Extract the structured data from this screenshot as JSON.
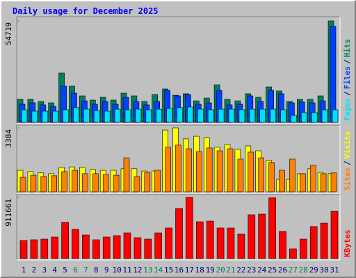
{
  "chart_data": {
    "type": "bar",
    "title": "Daily usage for December 2025",
    "categories": [
      "1",
      "2",
      "3",
      "4",
      "5",
      "6",
      "7",
      "8",
      "9",
      "10",
      "11",
      "12",
      "13",
      "14",
      "15",
      "16",
      "17",
      "18",
      "19",
      "20",
      "21",
      "22",
      "23",
      "24",
      "25",
      "26",
      "27",
      "28",
      "29",
      "30",
      "31"
    ],
    "label_colors": [
      "#000080",
      "#000080",
      "#000080",
      "#000080",
      "#000080",
      "#00805c",
      "#00805c",
      "#000080",
      "#000080",
      "#000080",
      "#000080",
      "#000080",
      "#00805c",
      "#00805c",
      "#000080",
      "#000080",
      "#000080",
      "#000080",
      "#000080",
      "#00805c",
      "#00805c",
      "#000080",
      "#000080",
      "#000080",
      "#000080",
      "#000080",
      "#00805c",
      "#00805c",
      "#000080",
      "#000080",
      "#000080"
    ],
    "legend_separator": "/",
    "panels": [
      {
        "ylim": [
          0,
          54719
        ],
        "yticks": [
          54719
        ],
        "series": [
          {
            "name": "Hits",
            "color": "#00805c",
            "values": [
              12400,
              12400,
              11250,
              10500,
              26600,
              19500,
              14250,
              12000,
              13500,
              12000,
              15750,
              14250,
              11250,
              15000,
              18000,
              14600,
              15400,
              11600,
              13100,
              20250,
              12400,
              11600,
              15400,
              13500,
              19100,
              16900,
              11250,
              12400,
              12400,
              14250,
              54719
            ]
          },
          {
            "name": "Files",
            "color": "#0040ff",
            "values": [
              9750,
              10500,
              9400,
              8600,
              19500,
              15750,
              11600,
              9750,
              11250,
              9750,
              13500,
              11250,
              9400,
              11250,
              17250,
              14250,
              15000,
              9750,
              10500,
              17250,
              9400,
              9750,
              14250,
              11250,
              17250,
              15400,
              10500,
              10900,
              10500,
              11600,
              51750
            ]
          },
          {
            "name": "Pages",
            "color": "#00e0ff",
            "values": [
              6750,
              6000,
              6000,
              6000,
              6750,
              7900,
              7100,
              6400,
              6000,
              7100,
              6750,
              7100,
              6750,
              7100,
              7500,
              7900,
              8250,
              7100,
              6750,
              7100,
              7100,
              6750,
              7100,
              7100,
              7100,
              6750,
              3750,
              5250,
              5250,
              6750,
              6750
            ]
          }
        ]
      },
      {
        "ylim": [
          0,
          3384
        ],
        "yticks": [
          3384
        ],
        "series": [
          {
            "name": "Visits",
            "color": "#ffff00",
            "values": [
              1140,
              1070,
              1000,
              960,
              1290,
              1320,
              1290,
              1180,
              1140,
              1140,
              1220,
              1220,
              1100,
              1100,
              3270,
              3384,
              2800,
              2940,
              2870,
              2360,
              2500,
              2250,
              2430,
              2170,
              1660,
              660,
              660,
              960,
              1220,
              1030,
              960
            ]
          },
          {
            "name": "Sites",
            "color": "#ff8000",
            "values": [
              770,
              880,
              810,
              850,
              1070,
              1140,
              960,
              960,
              920,
              880,
              1800,
              810,
              1030,
              1140,
              2360,
              2470,
              2280,
              2130,
              2320,
              2170,
              2280,
              1730,
              2100,
              1800,
              1550,
              1140,
              1730,
              960,
              1400,
              960,
              1000
            ]
          }
        ]
      },
      {
        "ylim": [
          0,
          911661
        ],
        "yticks": [
          911661
        ],
        "series": [
          {
            "name": "KBytes",
            "color": "#ff0000",
            "values": [
              269000,
              280000,
              290000,
              321000,
              539000,
              435000,
              352000,
              280000,
              321000,
              342000,
              383000,
              311000,
              290000,
              383000,
              456000,
              746000,
              911661,
              549000,
              559000,
              456000,
              456000,
              363000,
              653000,
              663000,
              905000,
              404000,
              145000,
              290000,
              477000,
              528000,
              704000
            ]
          }
        ]
      }
    ]
  }
}
